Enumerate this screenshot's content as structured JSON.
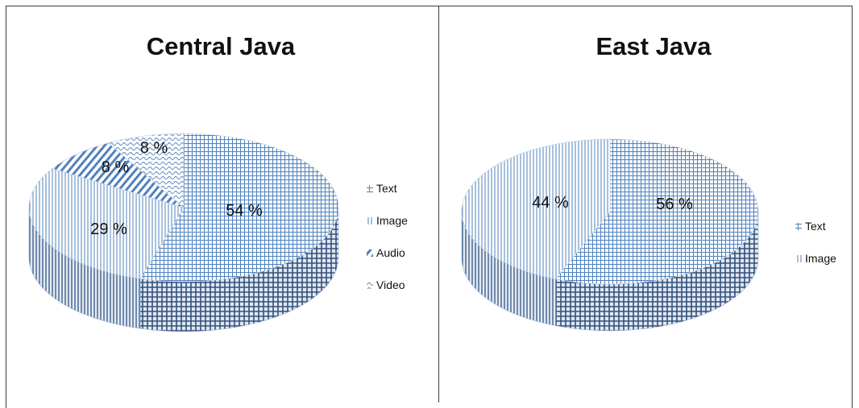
{
  "colors": {
    "accent": "#4f81bd",
    "border": "#3a3a3a",
    "background": "#ffffff"
  },
  "chart_data": [
    {
      "type": "pie",
      "style": "3d",
      "title": "Central Java",
      "legend_position": "right",
      "categories": [
        "Text",
        "Image",
        "Audio",
        "Video"
      ],
      "values": [
        54,
        29,
        8,
        8
      ],
      "labels": [
        "54 %",
        "29 %",
        "8 %",
        "8 %"
      ]
    },
    {
      "type": "pie",
      "style": "3d",
      "title": "East Java",
      "legend_position": "right",
      "categories": [
        "Text",
        "Image"
      ],
      "values": [
        56,
        44
      ],
      "labels": [
        "56 %",
        "44 %"
      ]
    }
  ]
}
